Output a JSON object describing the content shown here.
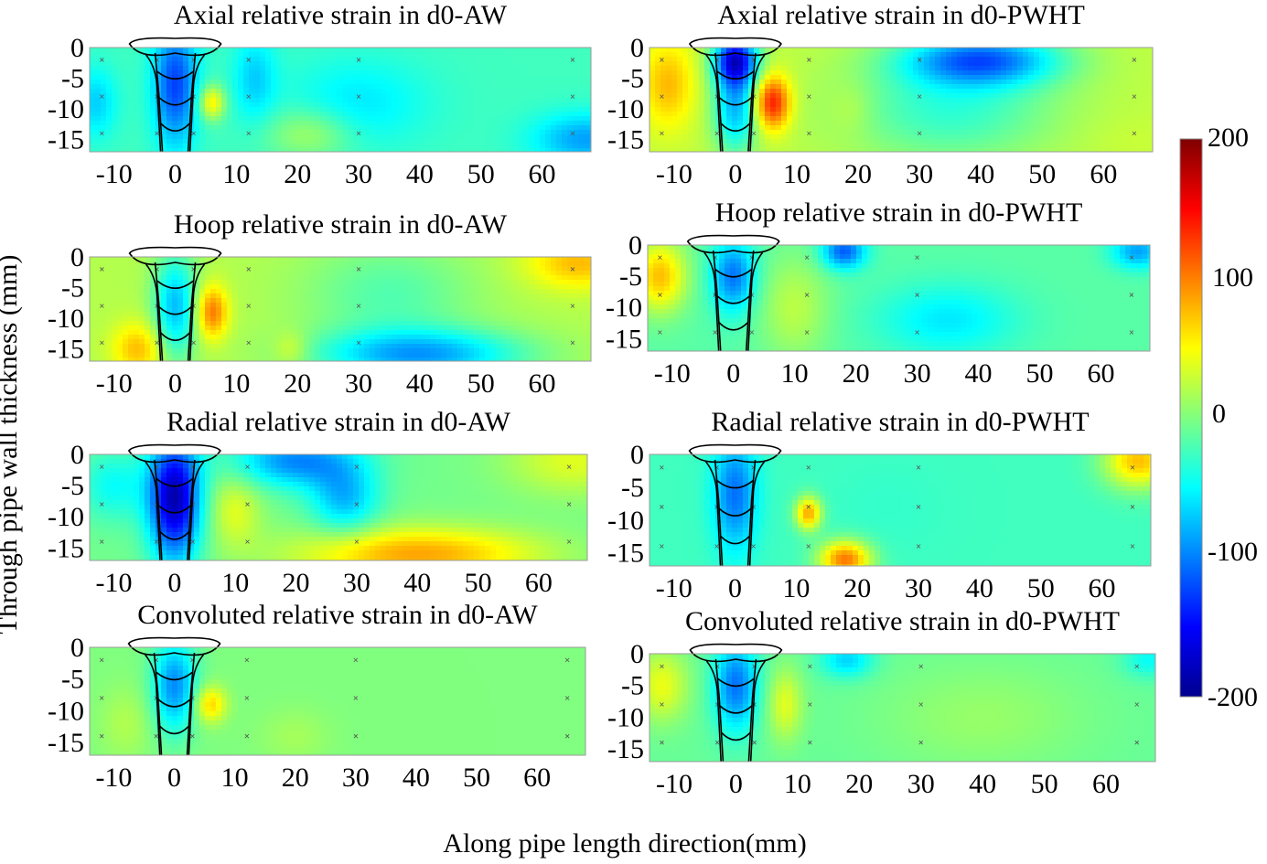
{
  "figure": {
    "ylabel": "Through pipe wall thickness (mm)",
    "xlabel": "Along pipe length direction(mm)"
  },
  "colorbar": {
    "ticks": [
      "200",
      "100",
      "0",
      "-100",
      "-200"
    ],
    "colormap": "jet",
    "range": [
      -200,
      200
    ]
  },
  "chart_data": [
    {
      "type": "heatmap",
      "title": "Axial relative strain in d0-AW",
      "xticks": [
        "-10",
        "0",
        "10",
        "20",
        "30",
        "40",
        "50",
        "60"
      ],
      "yticks": [
        "0",
        "-5",
        "-10",
        "-15"
      ],
      "xlim": [
        -14,
        68
      ],
      "ylim": [
        -17,
        0
      ],
      "base": -25,
      "features": [
        {
          "x": 0,
          "y": -6,
          "sx": 2.5,
          "sy": 7,
          "v": -130
        },
        {
          "x": -13,
          "y": -9,
          "sx": 2.5,
          "sy": 4,
          "v": -70
        },
        {
          "x": 13,
          "y": -5,
          "sx": 2.5,
          "sy": 5,
          "v": -70
        },
        {
          "x": 6,
          "y": -9,
          "sx": 1.5,
          "sy": 2,
          "v": 60
        },
        {
          "x": 30,
          "y": -9,
          "sx": 8,
          "sy": 5,
          "v": -60
        },
        {
          "x": 67,
          "y": -15,
          "sx": 6,
          "sy": 3,
          "v": -90
        },
        {
          "x": 22,
          "y": -14,
          "sx": 5,
          "sy": 3,
          "v": 20
        }
      ]
    },
    {
      "type": "heatmap",
      "title": "Axial relative strain in d0-PWHT",
      "xticks": [
        "-10",
        "0",
        "10",
        "20",
        "30",
        "40",
        "50",
        "60"
      ],
      "yticks": [
        "0",
        "-5",
        "-10",
        "-15"
      ],
      "xlim": [
        -14,
        68
      ],
      "ylim": [
        -17,
        0
      ],
      "base": 25,
      "features": [
        {
          "x": 0,
          "y": -2,
          "sx": 2.5,
          "sy": 3,
          "v": -160
        },
        {
          "x": 0,
          "y": -10,
          "sx": 2.5,
          "sy": 5,
          "v": -80
        },
        {
          "x": -11,
          "y": -6,
          "sx": 3,
          "sy": 5,
          "v": 80
        },
        {
          "x": 6,
          "y": -9,
          "sx": 2,
          "sy": 3,
          "v": 150
        },
        {
          "x": 19,
          "y": -10,
          "sx": 2.5,
          "sy": 3,
          "v": 40
        },
        {
          "x": 40,
          "y": -2,
          "sx": 9,
          "sy": 3,
          "v": -110
        },
        {
          "x": 35,
          "y": -10,
          "sx": 12,
          "sy": 6,
          "v": -35
        },
        {
          "x": 64,
          "y": -15,
          "sx": 6,
          "sy": 3,
          "v": 30
        }
      ]
    },
    {
      "type": "heatmap",
      "title": "Hoop relative strain in d0-AW",
      "xticks": [
        "-10",
        "0",
        "10",
        "20",
        "30",
        "40",
        "50",
        "60"
      ],
      "yticks": [
        "0",
        "-5",
        "-10",
        "-15"
      ],
      "xlim": [
        -14,
        68
      ],
      "ylim": [
        -17,
        0
      ],
      "base": 20,
      "features": [
        {
          "x": 0,
          "y": -8,
          "sx": 2.5,
          "sy": 6,
          "v": -80
        },
        {
          "x": 6,
          "y": -9,
          "sx": 1.8,
          "sy": 3,
          "v": 110
        },
        {
          "x": -6,
          "y": -15,
          "sx": 3,
          "sy": 3,
          "v": 80
        },
        {
          "x": 19,
          "y": -15,
          "sx": 2,
          "sy": 2,
          "v": 50
        },
        {
          "x": 40,
          "y": -16,
          "sx": 12,
          "sy": 3,
          "v": -90
        },
        {
          "x": 66,
          "y": -1,
          "sx": 6,
          "sy": 3,
          "v": 80
        },
        {
          "x": 35,
          "y": -6,
          "sx": 10,
          "sy": 6,
          "v": -20
        }
      ]
    },
    {
      "type": "heatmap",
      "title": "Hoop relative strain in d0-PWHT",
      "xticks": [
        "-10",
        "0",
        "10",
        "20",
        "30",
        "40",
        "50",
        "60"
      ],
      "yticks": [
        "0",
        "-5",
        "-10",
        "-15"
      ],
      "xlim": [
        -14,
        68
      ],
      "ylim": [
        -17,
        0
      ],
      "base": -15,
      "features": [
        {
          "x": 0,
          "y": -5,
          "sx": 2.5,
          "sy": 4,
          "v": -110
        },
        {
          "x": -12,
          "y": -5,
          "sx": 3,
          "sy": 4,
          "v": 80
        },
        {
          "x": 18,
          "y": -1,
          "sx": 2.5,
          "sy": 2,
          "v": -120
        },
        {
          "x": 35,
          "y": -12,
          "sx": 8,
          "sy": 4,
          "v": -60
        },
        {
          "x": 66,
          "y": -1,
          "sx": 3,
          "sy": 2,
          "v": -90
        },
        {
          "x": 10,
          "y": -10,
          "sx": 4,
          "sy": 6,
          "v": 25
        }
      ]
    },
    {
      "type": "heatmap",
      "title": "Radial relative strain in d0-AW",
      "xticks": [
        "-10",
        "0",
        "10",
        "20",
        "30",
        "40",
        "50",
        "60"
      ],
      "yticks": [
        "0",
        "-5",
        "-10",
        "-15"
      ],
      "xlim": [
        -14,
        68
      ],
      "ylim": [
        -17,
        0
      ],
      "base": -5,
      "features": [
        {
          "x": 0,
          "y": -7,
          "sx": 3,
          "sy": 7,
          "v": -190
        },
        {
          "x": 20,
          "y": -1,
          "sx": 7,
          "sy": 3,
          "v": -100
        },
        {
          "x": 28,
          "y": -7,
          "sx": 4,
          "sy": 4,
          "v": -80
        },
        {
          "x": -10,
          "y": -5,
          "sx": 4,
          "sy": 4,
          "v": -50
        },
        {
          "x": 40,
          "y": -16,
          "sx": 14,
          "sy": 3,
          "v": 90
        },
        {
          "x": 10,
          "y": -9,
          "sx": 3,
          "sy": 4,
          "v": 40
        },
        {
          "x": 66,
          "y": -1,
          "sx": 8,
          "sy": 4,
          "v": 40
        }
      ]
    },
    {
      "type": "heatmap",
      "title": "Radial relative strain in d0-PWHT",
      "xticks": [
        "-10",
        "0",
        "10",
        "20",
        "30",
        "40",
        "50",
        "60"
      ],
      "yticks": [
        "0",
        "-5",
        "-10",
        "-15"
      ],
      "xlim": [
        -14,
        68
      ],
      "ylim": [
        -17,
        0
      ],
      "base": -25,
      "features": [
        {
          "x": 0,
          "y": -6,
          "sx": 2.5,
          "sy": 6,
          "v": -110
        },
        {
          "x": 12,
          "y": -9,
          "sx": 1.5,
          "sy": 1.8,
          "v": 90
        },
        {
          "x": 18,
          "y": -16,
          "sx": 3,
          "sy": 2,
          "v": 110
        },
        {
          "x": 66,
          "y": -1,
          "sx": 4,
          "sy": 3,
          "v": 80
        },
        {
          "x": 25,
          "y": -8,
          "sx": 7,
          "sy": 5,
          "v": -30
        }
      ]
    },
    {
      "type": "heatmap",
      "title": "Convoluted relative strain in d0-AW",
      "xticks": [
        "-10",
        "0",
        "10",
        "20",
        "30",
        "40",
        "50",
        "60"
      ],
      "yticks": [
        "0",
        "-5",
        "-10",
        "-15"
      ],
      "xlim": [
        -14,
        68
      ],
      "ylim": [
        -17,
        0
      ],
      "base": 0,
      "features": [
        {
          "x": 0,
          "y": -6,
          "sx": 2.5,
          "sy": 5,
          "v": -100
        },
        {
          "x": 6,
          "y": -9,
          "sx": 1.8,
          "sy": 2,
          "v": 70
        },
        {
          "x": -8,
          "y": -12,
          "sx": 3,
          "sy": 4,
          "v": 20
        },
        {
          "x": 20,
          "y": -14,
          "sx": 4,
          "sy": 3,
          "v": 15
        }
      ]
    },
    {
      "type": "heatmap",
      "title": "Convoluted relative strain in d0-PWHT",
      "xticks": [
        "-10",
        "0",
        "10",
        "20",
        "30",
        "40",
        "50",
        "60"
      ],
      "yticks": [
        "0",
        "-5",
        "-10",
        "-15"
      ],
      "xlim": [
        -14,
        68
      ],
      "ylim": [
        -17,
        0
      ],
      "base": -10,
      "features": [
        {
          "x": 0,
          "y": -5,
          "sx": 2.5,
          "sy": 5,
          "v": -110
        },
        {
          "x": -12,
          "y": -5,
          "sx": 3,
          "sy": 4,
          "v": 45
        },
        {
          "x": 8,
          "y": -8,
          "sx": 2,
          "sy": 4,
          "v": 40
        },
        {
          "x": 18,
          "y": -1,
          "sx": 3,
          "sy": 2,
          "v": -70
        },
        {
          "x": 67,
          "y": -1,
          "sx": 3,
          "sy": 2,
          "v": -50
        },
        {
          "x": 40,
          "y": -10,
          "sx": 12,
          "sy": 6,
          "v": 10
        }
      ]
    }
  ]
}
